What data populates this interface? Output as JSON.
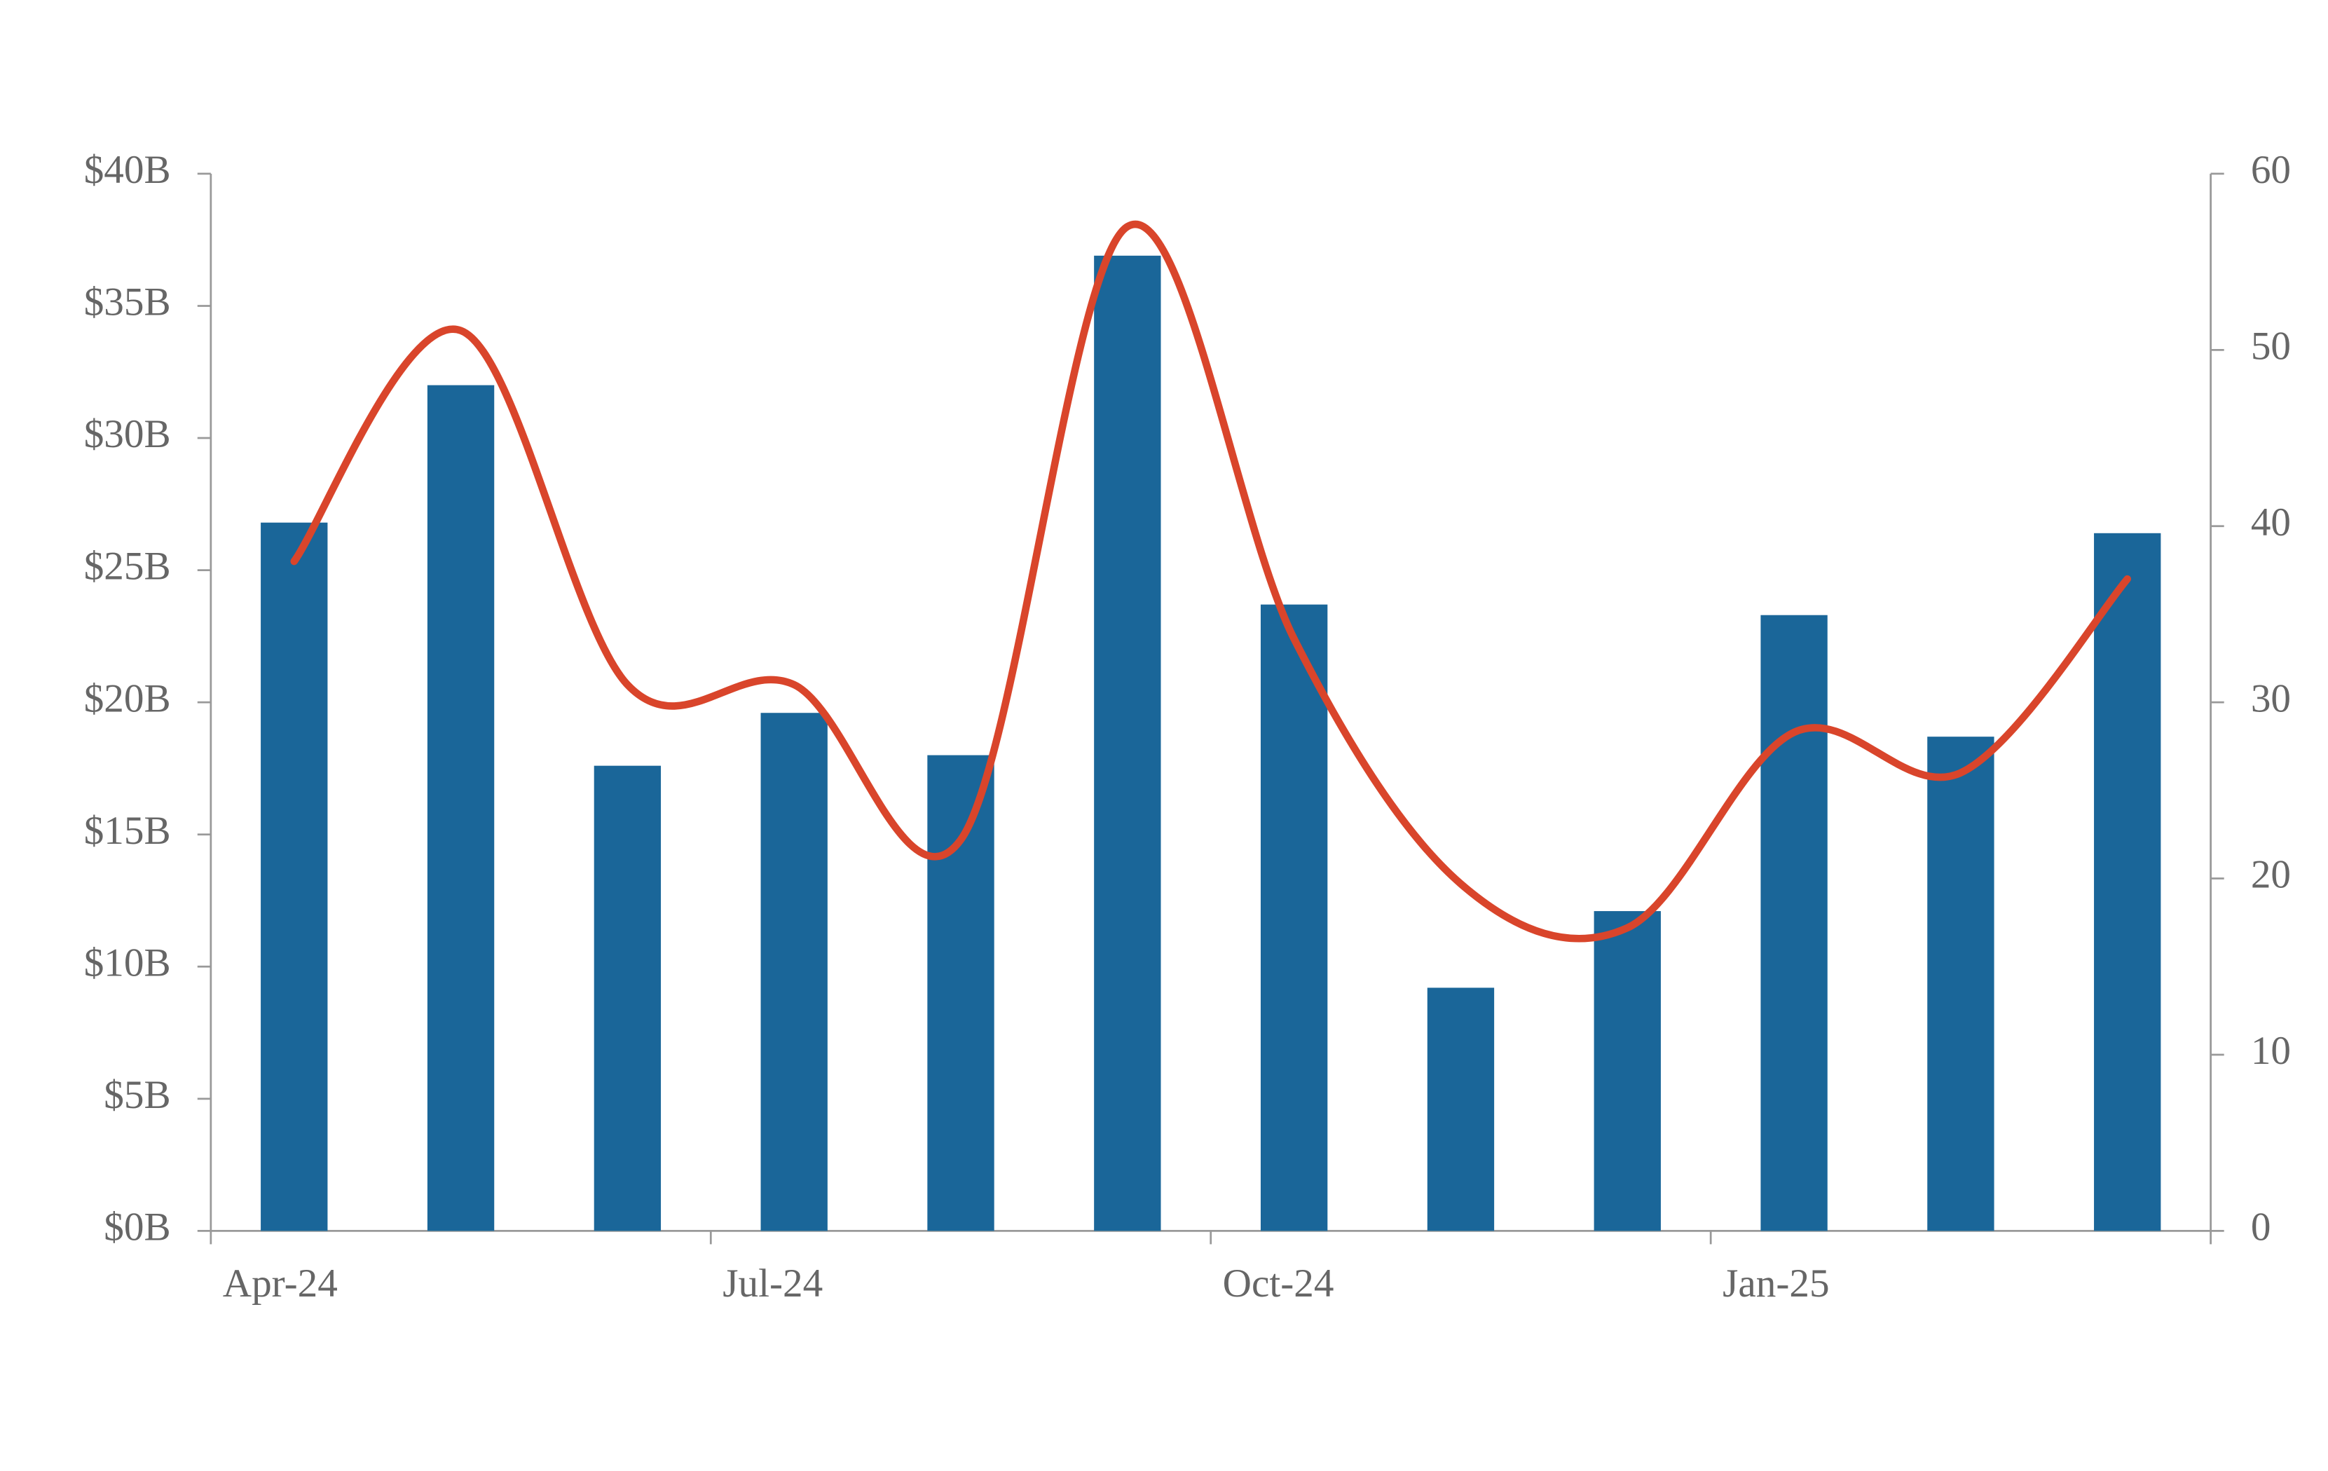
{
  "chart_data": {
    "type": "combo",
    "categories": [
      "Apr-24",
      null,
      null,
      "Jul-24",
      null,
      null,
      "Oct-24",
      null,
      null,
      "Jan-25",
      null,
      null
    ],
    "series": [
      {
        "type": "bar",
        "color": "#1a6699",
        "values": [
          26.8,
          32.0,
          17.6,
          19.6,
          18.0,
          36.9,
          23.7,
          9.2,
          12.1,
          23.3,
          18.7,
          26.4
        ]
      },
      {
        "type": "line",
        "color": "#d9452b",
        "axis": "y2",
        "values": [
          38.0,
          51.1,
          31.0,
          31.0,
          22.2,
          57.0,
          33.6,
          19.7,
          17.2,
          28.3,
          26.0,
          37.0
        ]
      }
    ],
    "ylim": [
      0,
      40
    ],
    "yticks": [
      {
        "value": 0,
        "label": "$0B"
      },
      {
        "value": 5,
        "label": "$5B"
      },
      {
        "value": 10,
        "label": "$10B"
      },
      {
        "value": 15,
        "label": "$15B"
      },
      {
        "value": 20,
        "label": "$20B"
      },
      {
        "value": 25,
        "label": "$25B"
      },
      {
        "value": 30,
        "label": "$30B"
      },
      {
        "value": 35,
        "label": "$35B"
      },
      {
        "value": 40,
        "label": "$40B"
      }
    ],
    "y2lim": [
      0,
      60
    ],
    "y2ticks": [
      0,
      10,
      20,
      30,
      40,
      50,
      60
    ]
  }
}
